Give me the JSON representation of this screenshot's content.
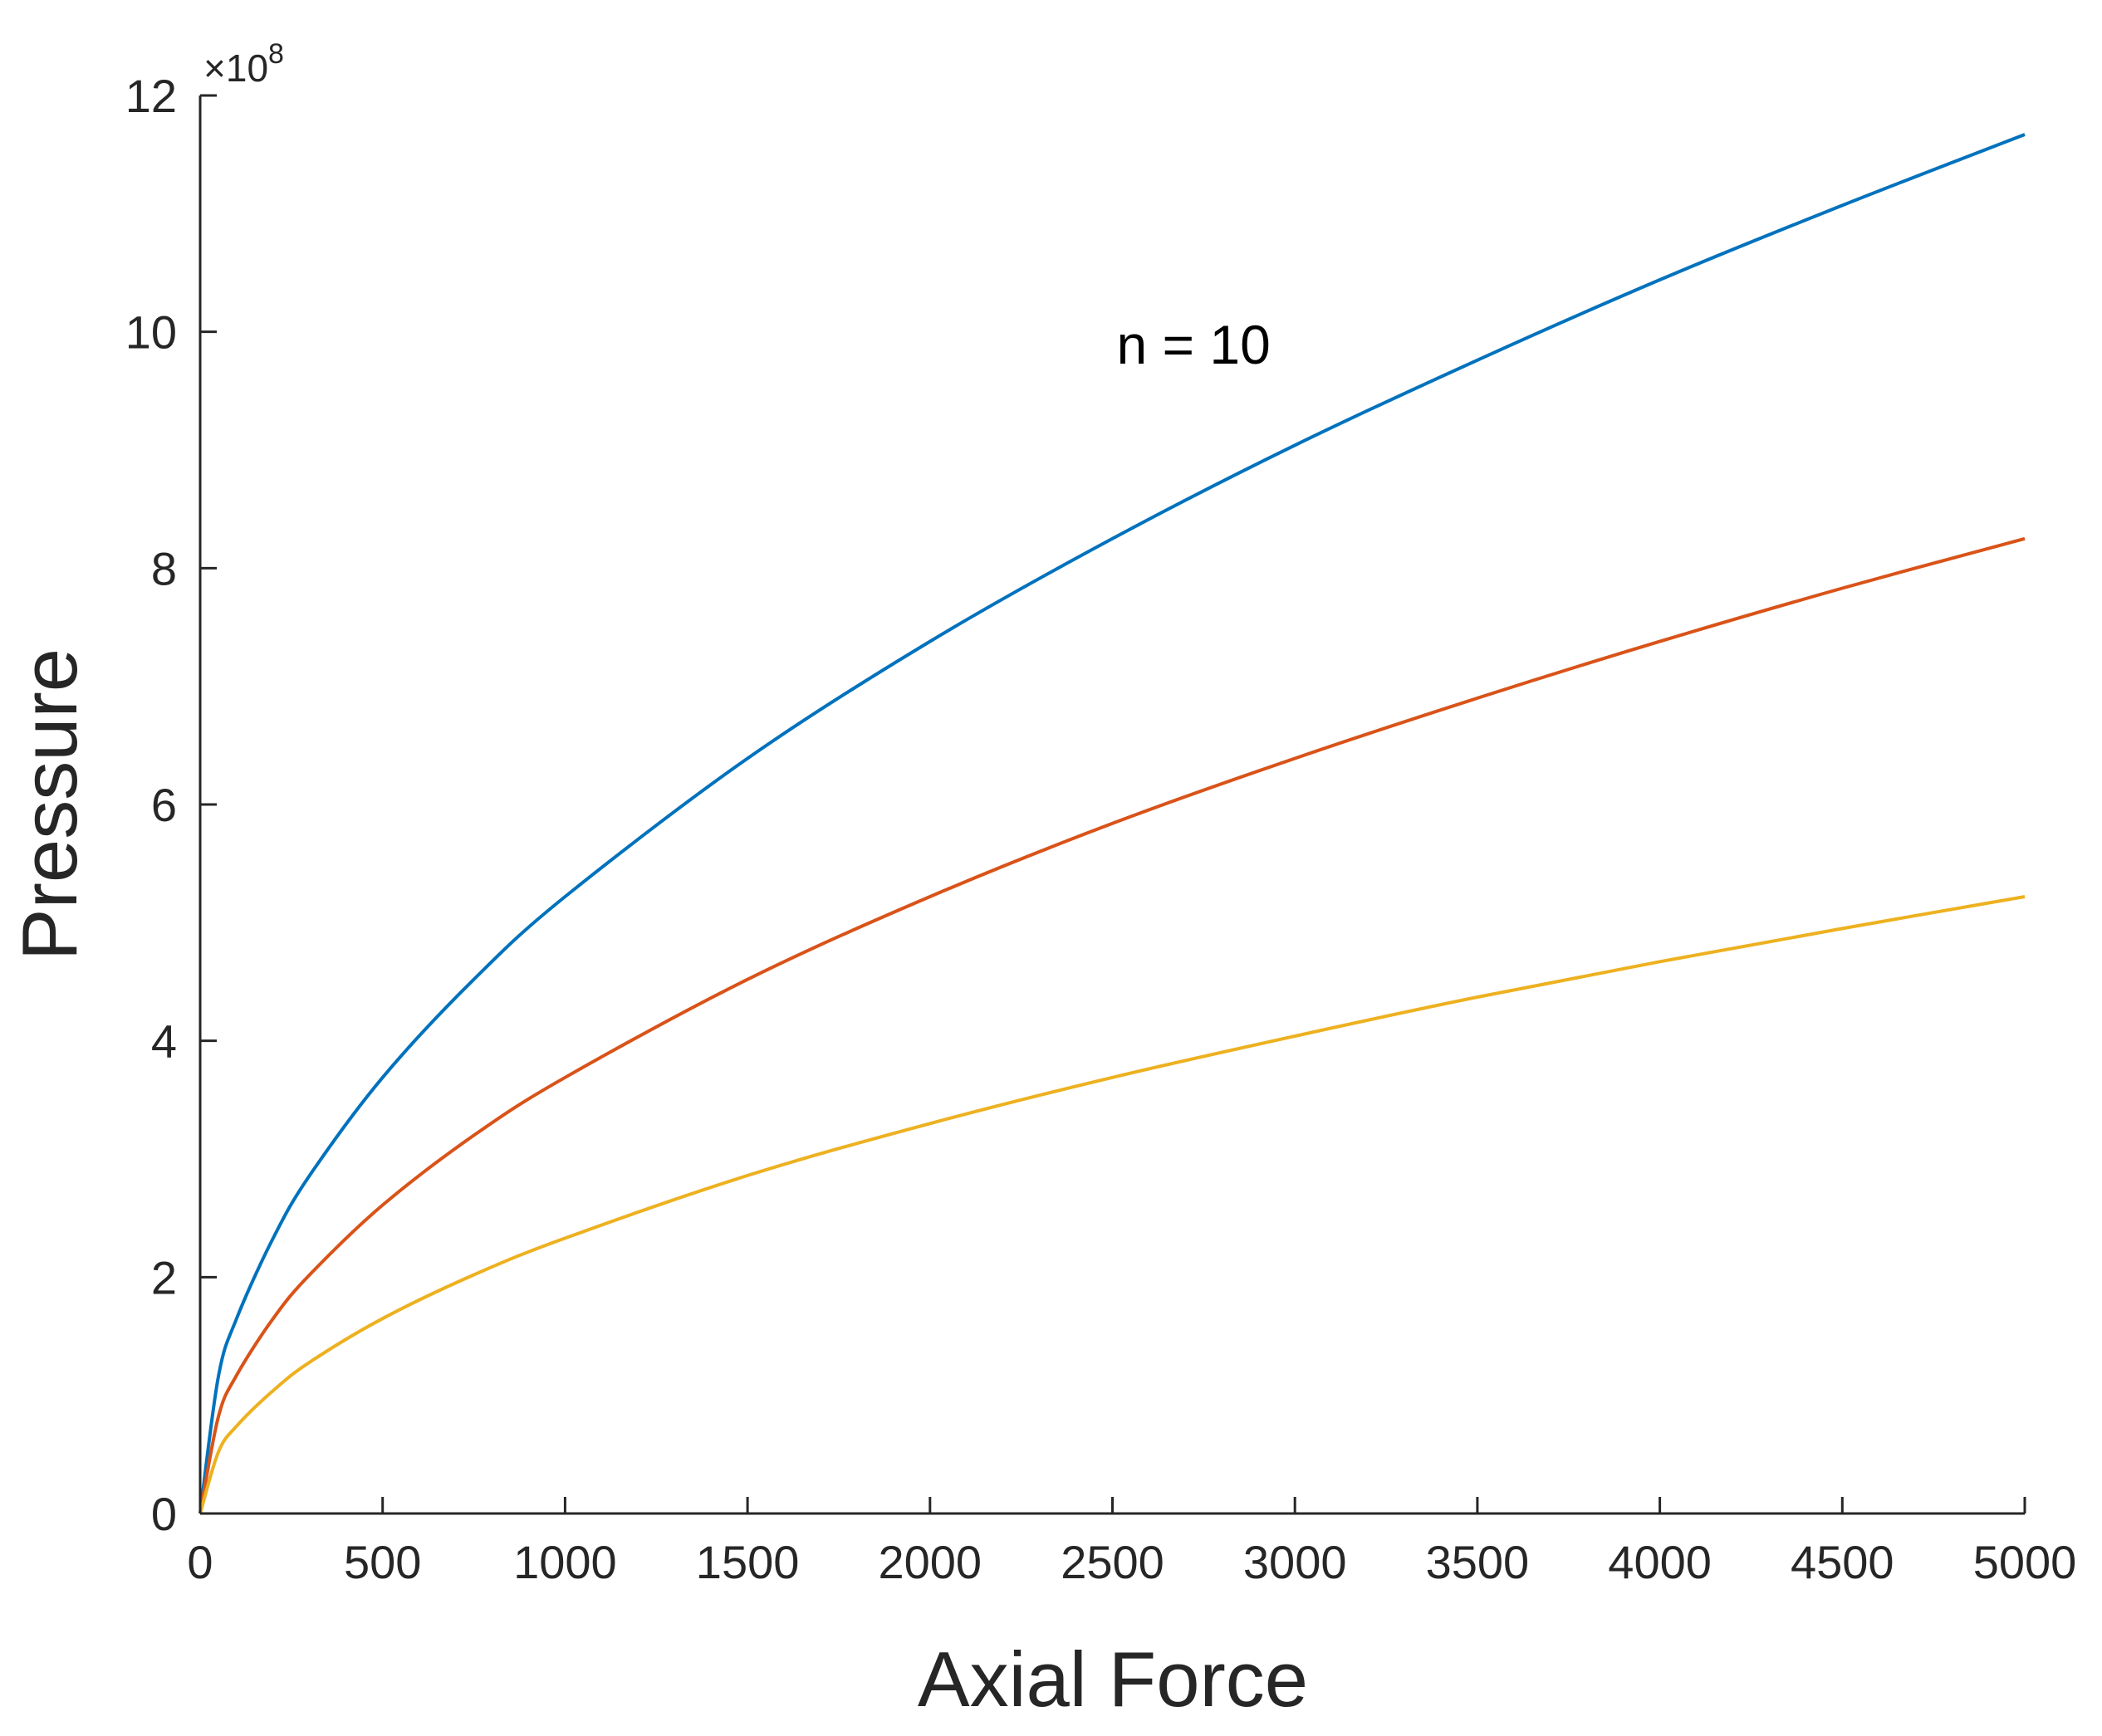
{
  "chart_data": {
    "type": "line",
    "title": "",
    "xlabel": "Axial Force",
    "ylabel": "Pressure",
    "xlim": [
      0,
      5000
    ],
    "ylim": [
      0,
      12
    ],
    "x_ticks": [
      0,
      500,
      1000,
      1500,
      2000,
      2500,
      3000,
      3500,
      4000,
      4500,
      5000
    ],
    "y_ticks": [
      0,
      2,
      4,
      6,
      8,
      10,
      12
    ],
    "y_exponent": {
      "prefix": "×10",
      "power": "8"
    },
    "grid": false,
    "legend": "none",
    "annotation": {
      "text": "n = 10",
      "x": 2500,
      "y": 9.9
    },
    "x": [
      0,
      50,
      100,
      200,
      300,
      500,
      750,
      1000,
      1500,
      2000,
      2500,
      3000,
      3500,
      4000,
      4500,
      5000
    ],
    "series": [
      {
        "color": "#0072BD",
        "values": [
          0,
          1.16,
          1.65,
          2.33,
          2.86,
          3.69,
          4.52,
          5.22,
          6.39,
          7.38,
          8.25,
          9.04,
          9.76,
          10.44,
          11.07,
          11.67
        ]
      },
      {
        "color": "#D95319",
        "values": [
          0,
          0.82,
          1.17,
          1.65,
          2.02,
          2.61,
          3.2,
          3.69,
          4.52,
          5.22,
          5.84,
          6.39,
          6.9,
          7.38,
          7.83,
          8.25
        ]
      },
      {
        "color": "#EDB120",
        "values": [
          0,
          0.52,
          0.74,
          1.04,
          1.28,
          1.65,
          2.02,
          2.33,
          2.86,
          3.3,
          3.69,
          4.04,
          4.37,
          4.67,
          4.95,
          5.22
        ]
      }
    ]
  }
}
